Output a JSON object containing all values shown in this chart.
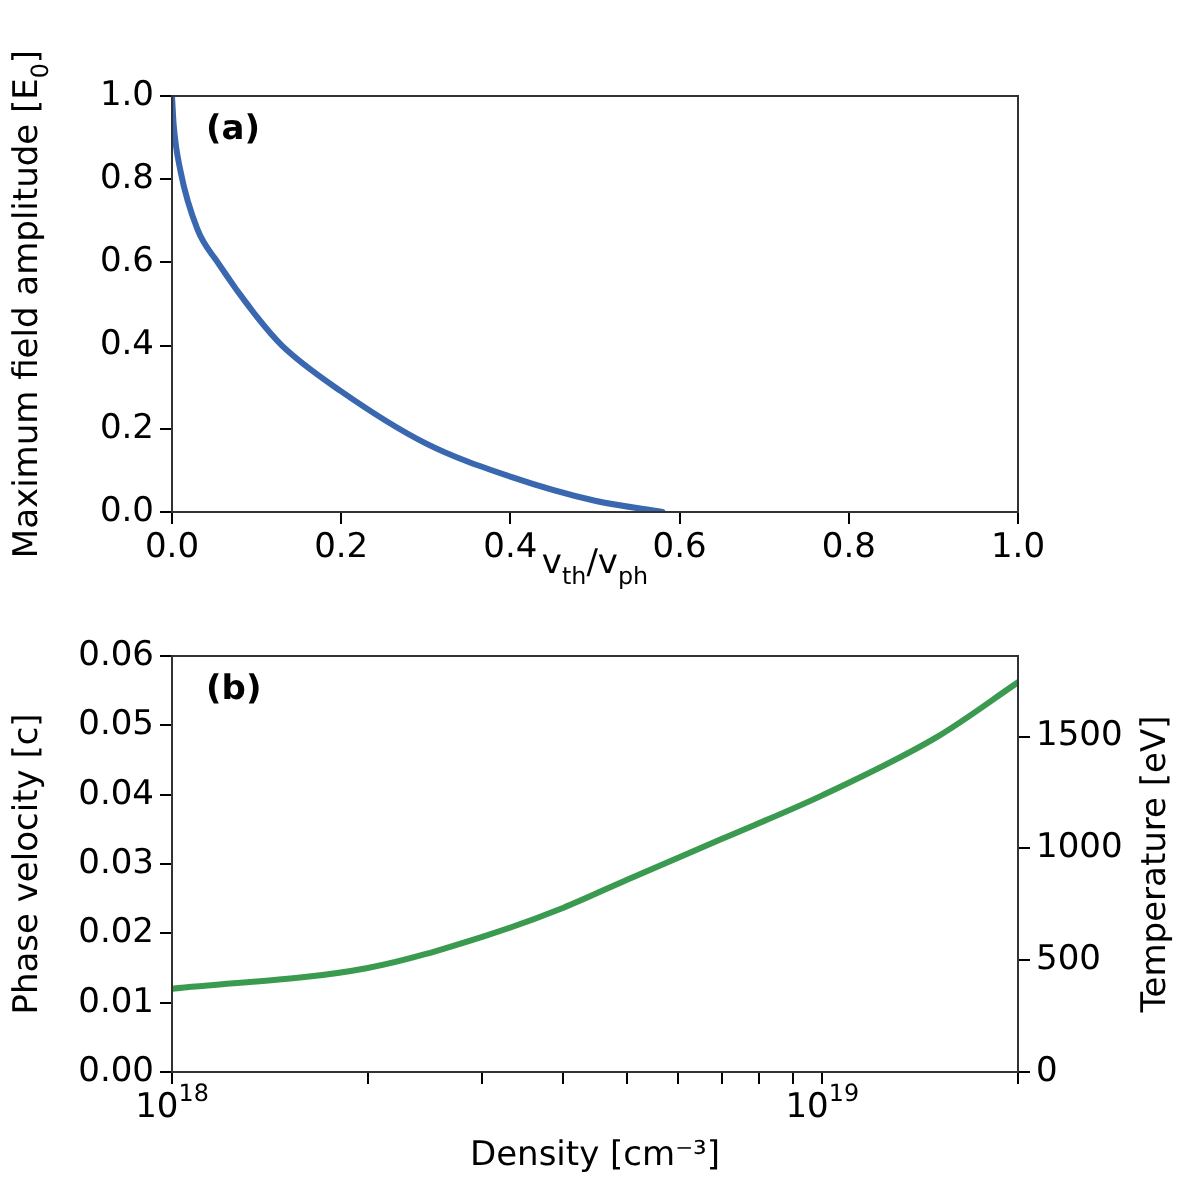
{
  "chart_data": [
    {
      "type": "line",
      "xlabel": "v$_{th}$/v$_{ph}$",
      "ylabel": "Maximum field amplitude [E$_{0}$]",
      "annotations": [
        "(a)"
      ],
      "series": [
        {
          "color": "#3a68b0",
          "x": [
            0,
            0.002,
            0.01,
            0.03,
            0.054,
            0.1,
            0.13,
            0.2,
            0.3,
            0.4,
            0.5,
            0.58
          ],
          "values": [
            1,
            0.93,
            0.82,
            0.68,
            0.6,
            0.47,
            0.4,
            0.29,
            0.165,
            0.085,
            0.027,
            0
          ]
        }
      ],
      "xlim": [
        0,
        1
      ],
      "ylim": [
        0,
        1
      ],
      "xticks": [
        {
          "value": 0,
          "label": "0.0"
        },
        {
          "value": 0.2,
          "label": "0.2"
        },
        {
          "value": 0.4,
          "label": "0.4"
        },
        {
          "value": 0.6,
          "label": "0.6"
        },
        {
          "value": 0.8,
          "label": "0.8"
        },
        {
          "value": 1,
          "label": "1.0"
        }
      ],
      "yticks": [
        {
          "value": 0,
          "label": "0.0"
        },
        {
          "value": 0.2,
          "label": "0.2"
        },
        {
          "value": 0.4,
          "label": "0.4"
        },
        {
          "value": 0.6,
          "label": "0.6"
        },
        {
          "value": 0.8,
          "label": "0.8"
        },
        {
          "value": 1,
          "label": "1.0"
        }
      ],
      "grid": false,
      "legend": false,
      "marker": "none",
      "line_style": "solid"
    },
    {
      "type": "line",
      "xlabel": "Density [cm⁻³]",
      "ylabel": "Phase velocity [c]",
      "y2label": "Temperature [eV]",
      "annotations": [
        "(b)"
      ],
      "log": "x",
      "series": [
        {
          "color": "#3a9a4f",
          "x": [
            1e+18,
            2e+18,
            3e+18,
            4e+18,
            5e+18,
            7e+18,
            1e+19,
            1.5e+19,
            2e+19
          ],
          "values": [
            0.012,
            0.015,
            0.0195,
            0.0237,
            0.0277,
            0.0336,
            0.0399,
            0.0483,
            0.0562
          ]
        }
      ],
      "xlim": [
        1e+18,
        2e+19
      ],
      "ylim": [
        0,
        0.06
      ],
      "y2lim": [
        0,
        1860
      ],
      "xticks": [
        {
          "value": 1e+18,
          "label": "10$^{18}$"
        },
        {
          "value": 2e+18,
          "label": null
        },
        {
          "value": 3e+18,
          "label": null
        },
        {
          "value": 4e+18,
          "label": null
        },
        {
          "value": 5e+18,
          "label": null
        },
        {
          "value": 6e+18,
          "label": null
        },
        {
          "value": 7e+18,
          "label": null
        },
        {
          "value": 8e+18,
          "label": null
        },
        {
          "value": 9e+18,
          "label": null
        },
        {
          "value": 1e+19,
          "label": "10$^{19}$"
        },
        {
          "value": 2e+19,
          "label": null
        }
      ],
      "yticks": [
        {
          "value": 0,
          "label": "0.00"
        },
        {
          "value": 0.01,
          "label": "0.01"
        },
        {
          "value": 0.02,
          "label": "0.02"
        },
        {
          "value": 0.03,
          "label": "0.03"
        },
        {
          "value": 0.04,
          "label": "0.04"
        },
        {
          "value": 0.05,
          "label": "0.05"
        },
        {
          "value": 0.06,
          "label": "0.06"
        }
      ],
      "y2ticks": [
        0,
        500,
        1000,
        1500
      ],
      "grid": false,
      "legend": false,
      "marker": "none",
      "line_style": "solid"
    }
  ]
}
